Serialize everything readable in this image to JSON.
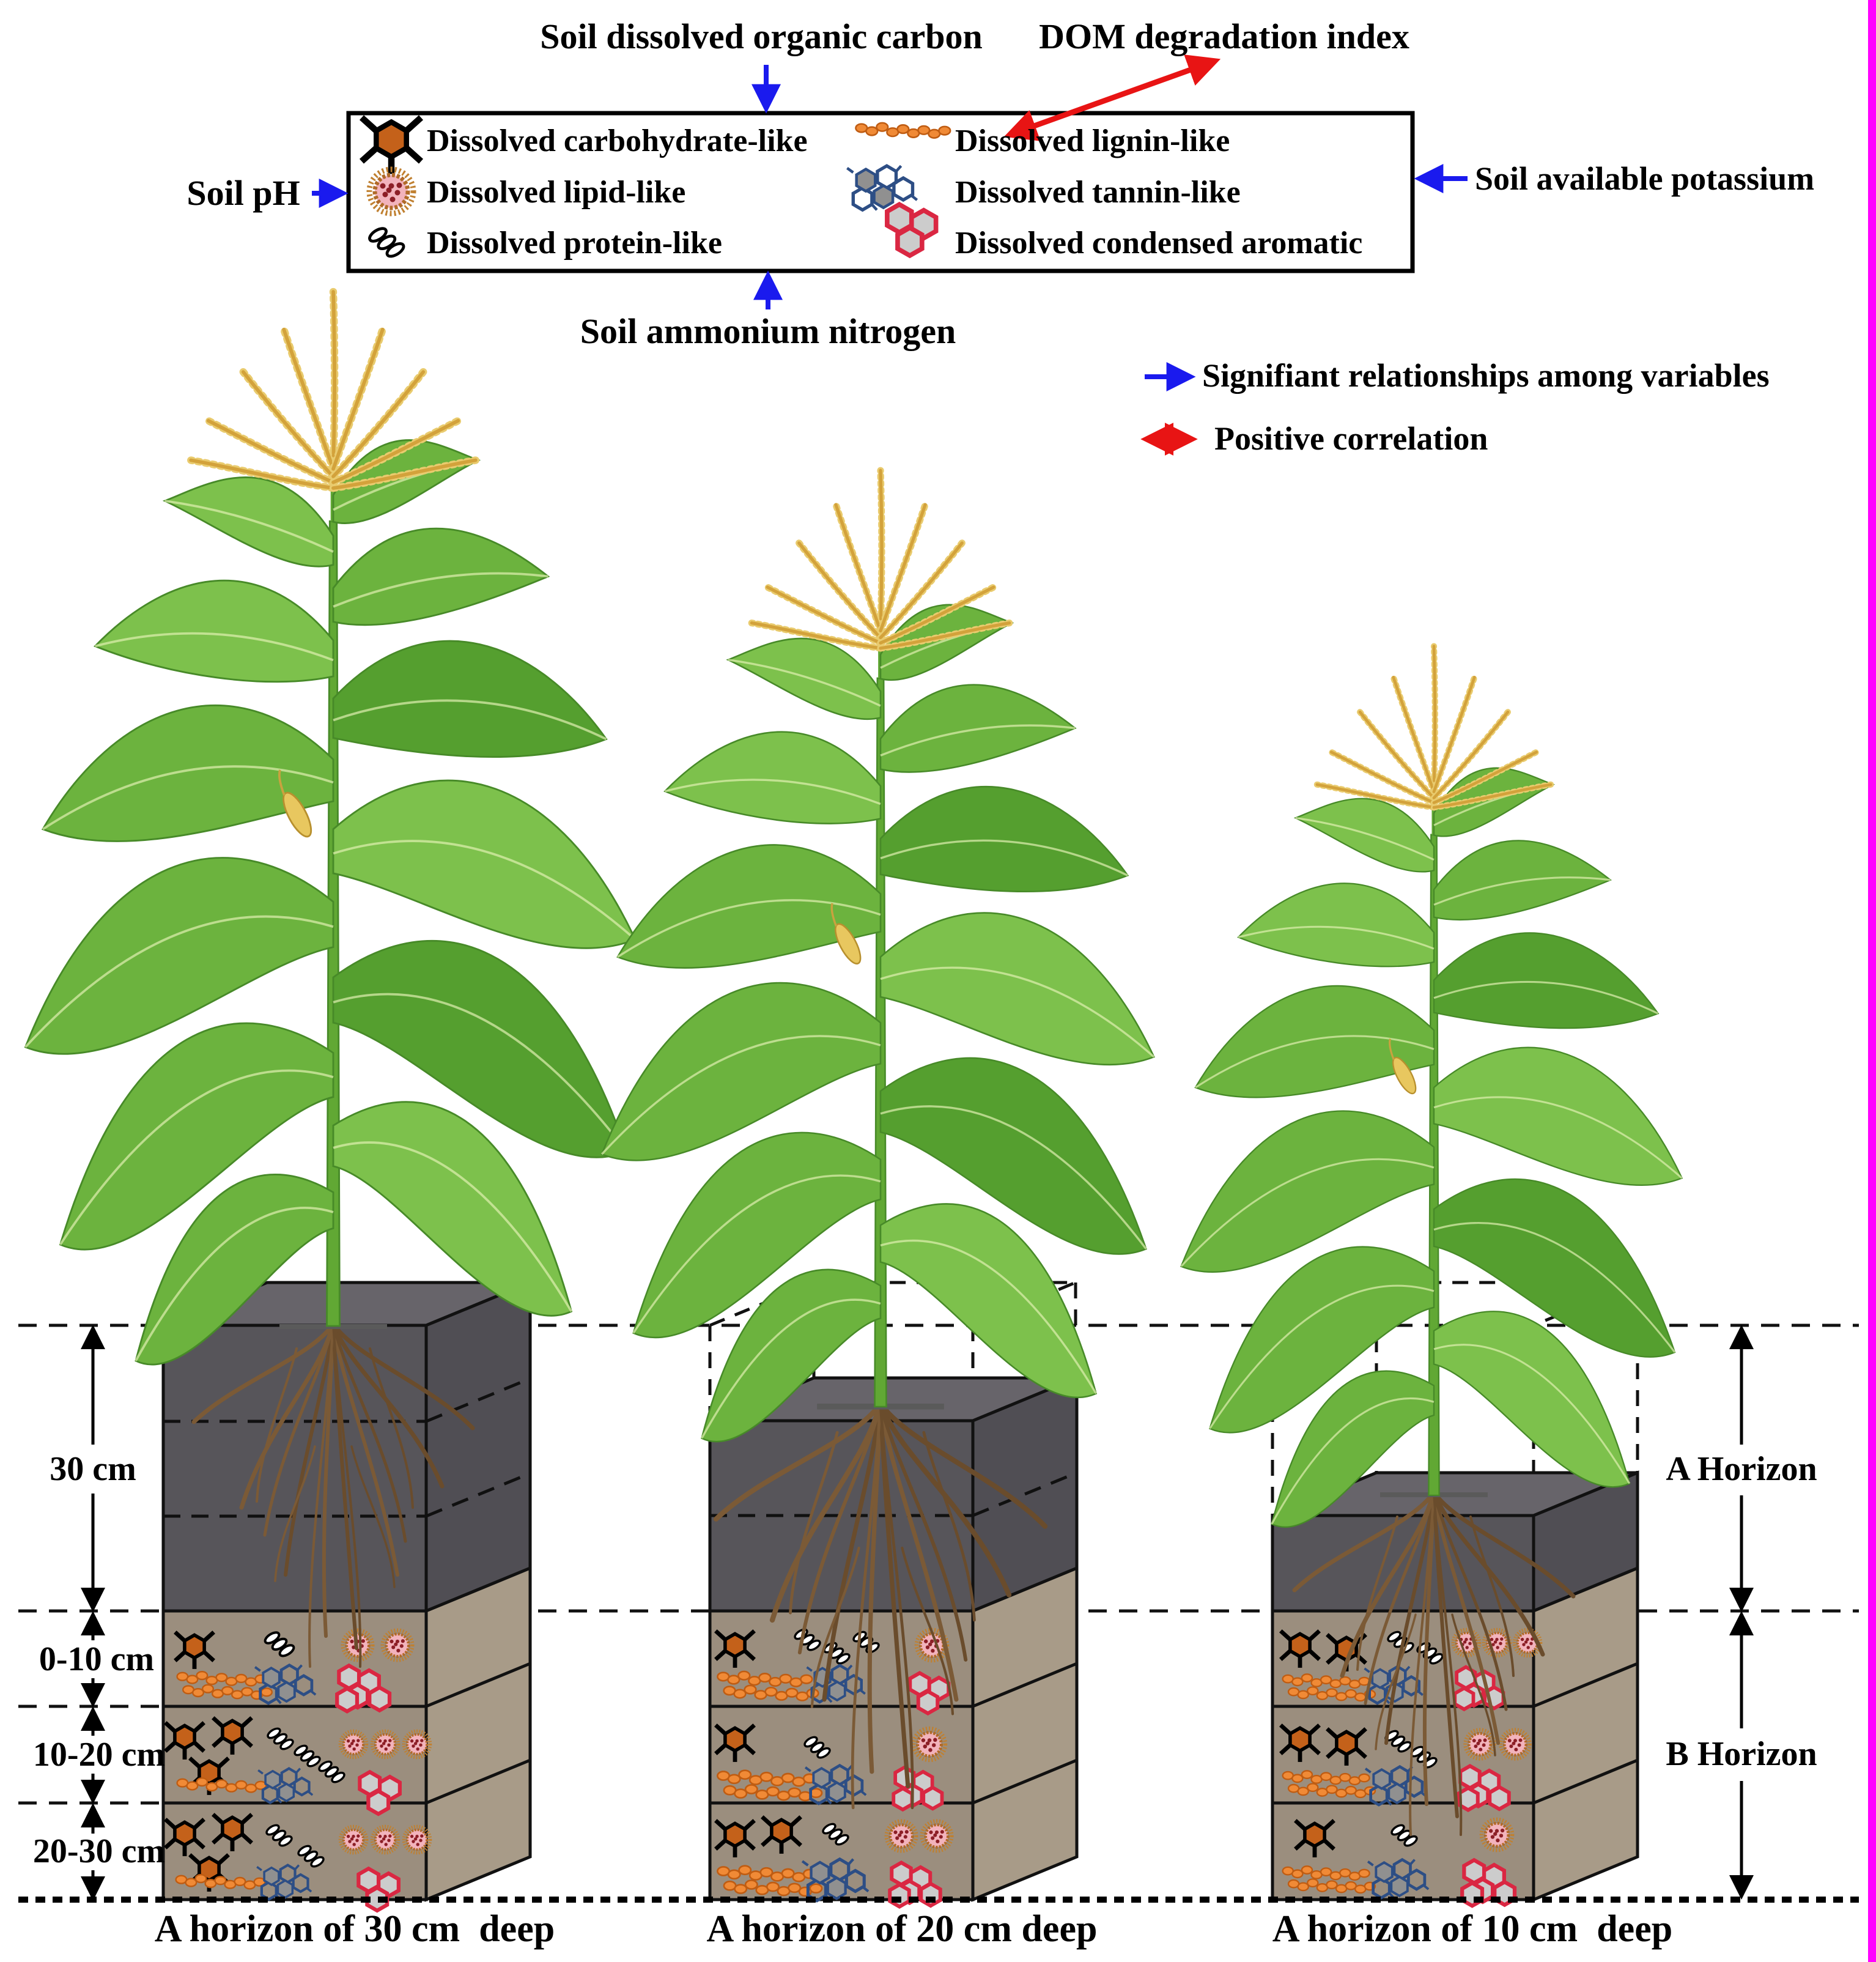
{
  "figure": {
    "top": {
      "soc": "Soil dissolved organic carbon",
      "dom": "DOM degradation index",
      "ph": "Soil pH",
      "potassium": "Soil available potassium",
      "ammonium": "Soil ammonium nitrogen"
    },
    "legend": {
      "items": [
        {
          "label": "Dissolved carbohydrate-like",
          "icon": "carbohydrate-icon"
        },
        {
          "label": "Dissolved lipid-like",
          "icon": "lipid-icon"
        },
        {
          "label": "Dissolved protein-like",
          "icon": "protein-icon"
        },
        {
          "label": "Dissolved lignin-like",
          "icon": "lignin-icon"
        },
        {
          "label": "Dissolved tannin-like",
          "icon": "tannin-icon"
        },
        {
          "label": "Dissolved condensed aromatic",
          "icon": "condensed-aromatic-icon"
        }
      ]
    },
    "key": {
      "significant": "Signifiant relationships among variables",
      "positive": "Positive correlation"
    },
    "scale": {
      "a_total": "30 cm",
      "b_layers": [
        "0-10 cm",
        "10-20 cm",
        "20-30 cm"
      ]
    },
    "horizons": {
      "a": "A Horizon",
      "b": "B Horizon"
    },
    "captions": [
      "A horizon of 30 cm  deep",
      "A horizon of 20 cm deep",
      "A horizon of 10 cm  deep"
    ],
    "colors": {
      "relationship_arrow_blue": "#1a1aee",
      "correlation_arrow_red": "#e81414",
      "a_horizon_gray": "#57555a",
      "b_horizon_brown": "#9b8e7e",
      "page_edge_magenta": "#ff00ff"
    }
  }
}
